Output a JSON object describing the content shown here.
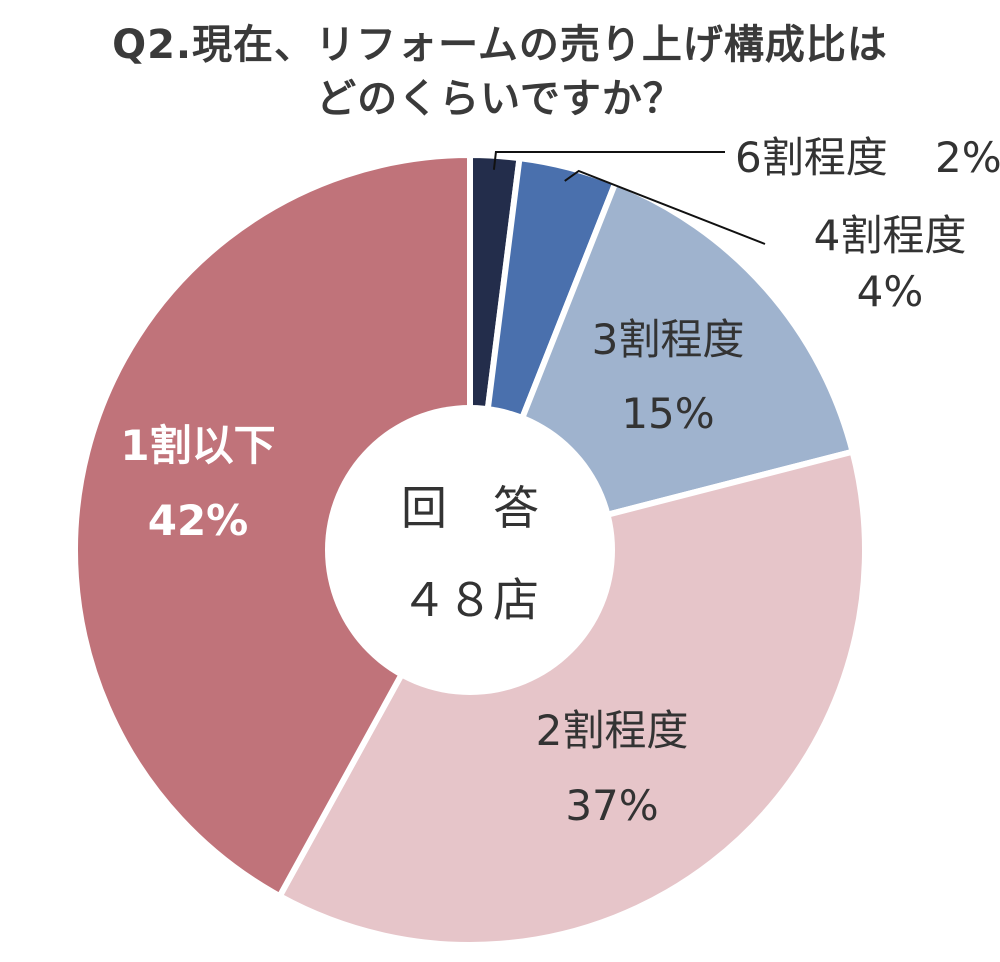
{
  "title_lines": [
    "Q2.現在、リフォームの売り上げ構成比は",
    "どのくらいですか？"
  ],
  "chart_data": {
    "type": "pie",
    "title": "Q2.現在、リフォームの売り上げ構成比はどのくらいですか？",
    "center_label": {
      "line1": "回　答",
      "line2": "４８店"
    },
    "slices": [
      {
        "label": "6割程度",
        "value": 2,
        "value_label": "2%",
        "color": "#232d4b",
        "text_color": "#333333"
      },
      {
        "label": "4割程度",
        "value": 4,
        "value_label": "4%",
        "color": "#4a70ad",
        "text_color": "#333333"
      },
      {
        "label": "3割程度",
        "value": 15,
        "value_label": "15%",
        "color": "#9fb3ce",
        "text_color": "#333333"
      },
      {
        "label": "2割程度",
        "value": 37,
        "value_label": "37%",
        "color": "#e6c5c9",
        "text_color": "#333333"
      },
      {
        "label": "1割以下",
        "value": 42,
        "value_label": "42%",
        "color": "#c0737a",
        "text_color": "#ffffff"
      }
    ]
  }
}
